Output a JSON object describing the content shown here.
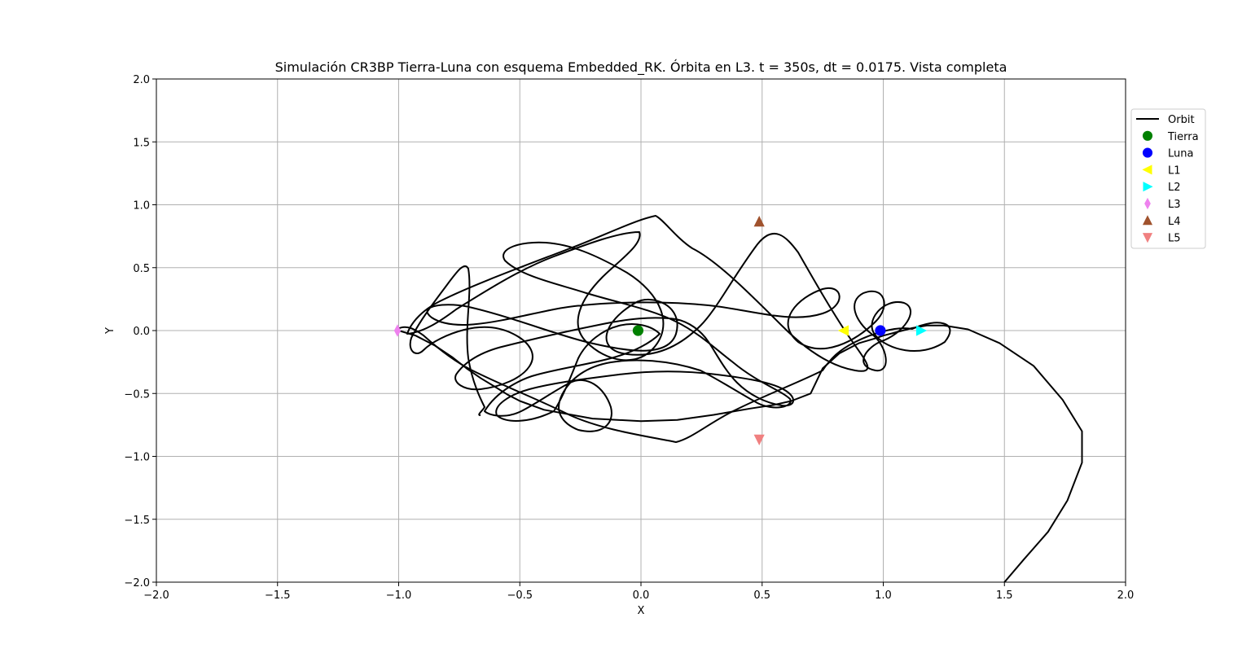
{
  "chart_data": {
    "type": "line",
    "title": "Simulación CR3BP Tierra-Luna con esquema Embedded_RK. Órbita en L3. t = 350s, dt = 0.0175. Vista completa",
    "xlabel": "X",
    "ylabel": "Y",
    "xlim": [
      -2.0,
      2.0
    ],
    "ylim": [
      -2.0,
      2.0
    ],
    "xticks": [
      -2.0,
      -1.5,
      -1.0,
      -0.5,
      0.0,
      0.5,
      1.0,
      1.5,
      2.0
    ],
    "yticks": [
      -2.0,
      -1.5,
      -1.0,
      -0.5,
      0.0,
      0.5,
      1.0,
      1.5,
      2.0
    ],
    "xtick_labels": [
      "−2.0",
      "−1.5",
      "−1.0",
      "−0.5",
      "0.0",
      "0.5",
      "1.0",
      "1.5",
      "2.0"
    ],
    "ytick_labels": [
      "−2.0",
      "−1.5",
      "−1.0",
      "−0.5",
      "0.0",
      "0.5",
      "1.0",
      "1.5",
      "2.0"
    ],
    "grid": true,
    "legend_position": "right-top",
    "series": [
      {
        "name": "Orbit",
        "color": "#000000",
        "x": [
          -1.0,
          -0.93,
          -0.85,
          -0.78,
          -0.72,
          -0.66,
          -0.6,
          -0.55,
          -0.5,
          -0.4,
          -0.2,
          0.0,
          0.15,
          0.3,
          0.45,
          0.55,
          0.62,
          0.7,
          0.75,
          0.82,
          0.9,
          0.97,
          1.0,
          1.04,
          1.08,
          1.12,
          1.18,
          1.25,
          1.35,
          1.48,
          1.62,
          1.74,
          1.82,
          1.82,
          1.76,
          1.68,
          1.58,
          1.5
        ],
        "y": [
          0.0,
          -0.04,
          -0.12,
          -0.21,
          -0.3,
          -0.38,
          -0.45,
          -0.51,
          -0.56,
          -0.63,
          -0.7,
          -0.72,
          -0.71,
          -0.67,
          -0.62,
          -0.59,
          -0.56,
          -0.5,
          -0.3,
          -0.18,
          -0.1,
          -0.06,
          -0.04,
          -0.02,
          0.0,
          0.02,
          0.04,
          0.04,
          0.01,
          -0.1,
          -0.28,
          -0.55,
          -0.8,
          -1.05,
          -1.35,
          -1.6,
          -1.82,
          -2.0
        ]
      }
    ],
    "points": [
      {
        "name": "Tierra",
        "x": -0.012,
        "y": 0.0,
        "marker": "circle",
        "color": "#008000"
      },
      {
        "name": "Luna",
        "x": 0.988,
        "y": 0.0,
        "marker": "circle",
        "color": "#0000ff"
      },
      {
        "name": "L1",
        "x": 0.837,
        "y": 0.0,
        "marker": "triangle-left",
        "color": "#ffff00"
      },
      {
        "name": "L2",
        "x": 1.156,
        "y": 0.0,
        "marker": "triangle-right",
        "color": "#00ffff"
      },
      {
        "name": "L3",
        "x": -1.005,
        "y": 0.0,
        "marker": "diamond",
        "color": "#ee82ee"
      },
      {
        "name": "L4",
        "x": 0.488,
        "y": 0.866,
        "marker": "triangle-up",
        "color": "#a0522d"
      },
      {
        "name": "L5",
        "x": 0.488,
        "y": -0.866,
        "marker": "triangle-down",
        "color": "#f08080"
      }
    ],
    "legend": [
      "Orbit",
      "Tierra",
      "Luna",
      "L1",
      "L2",
      "L3",
      "L4",
      "L5"
    ]
  }
}
